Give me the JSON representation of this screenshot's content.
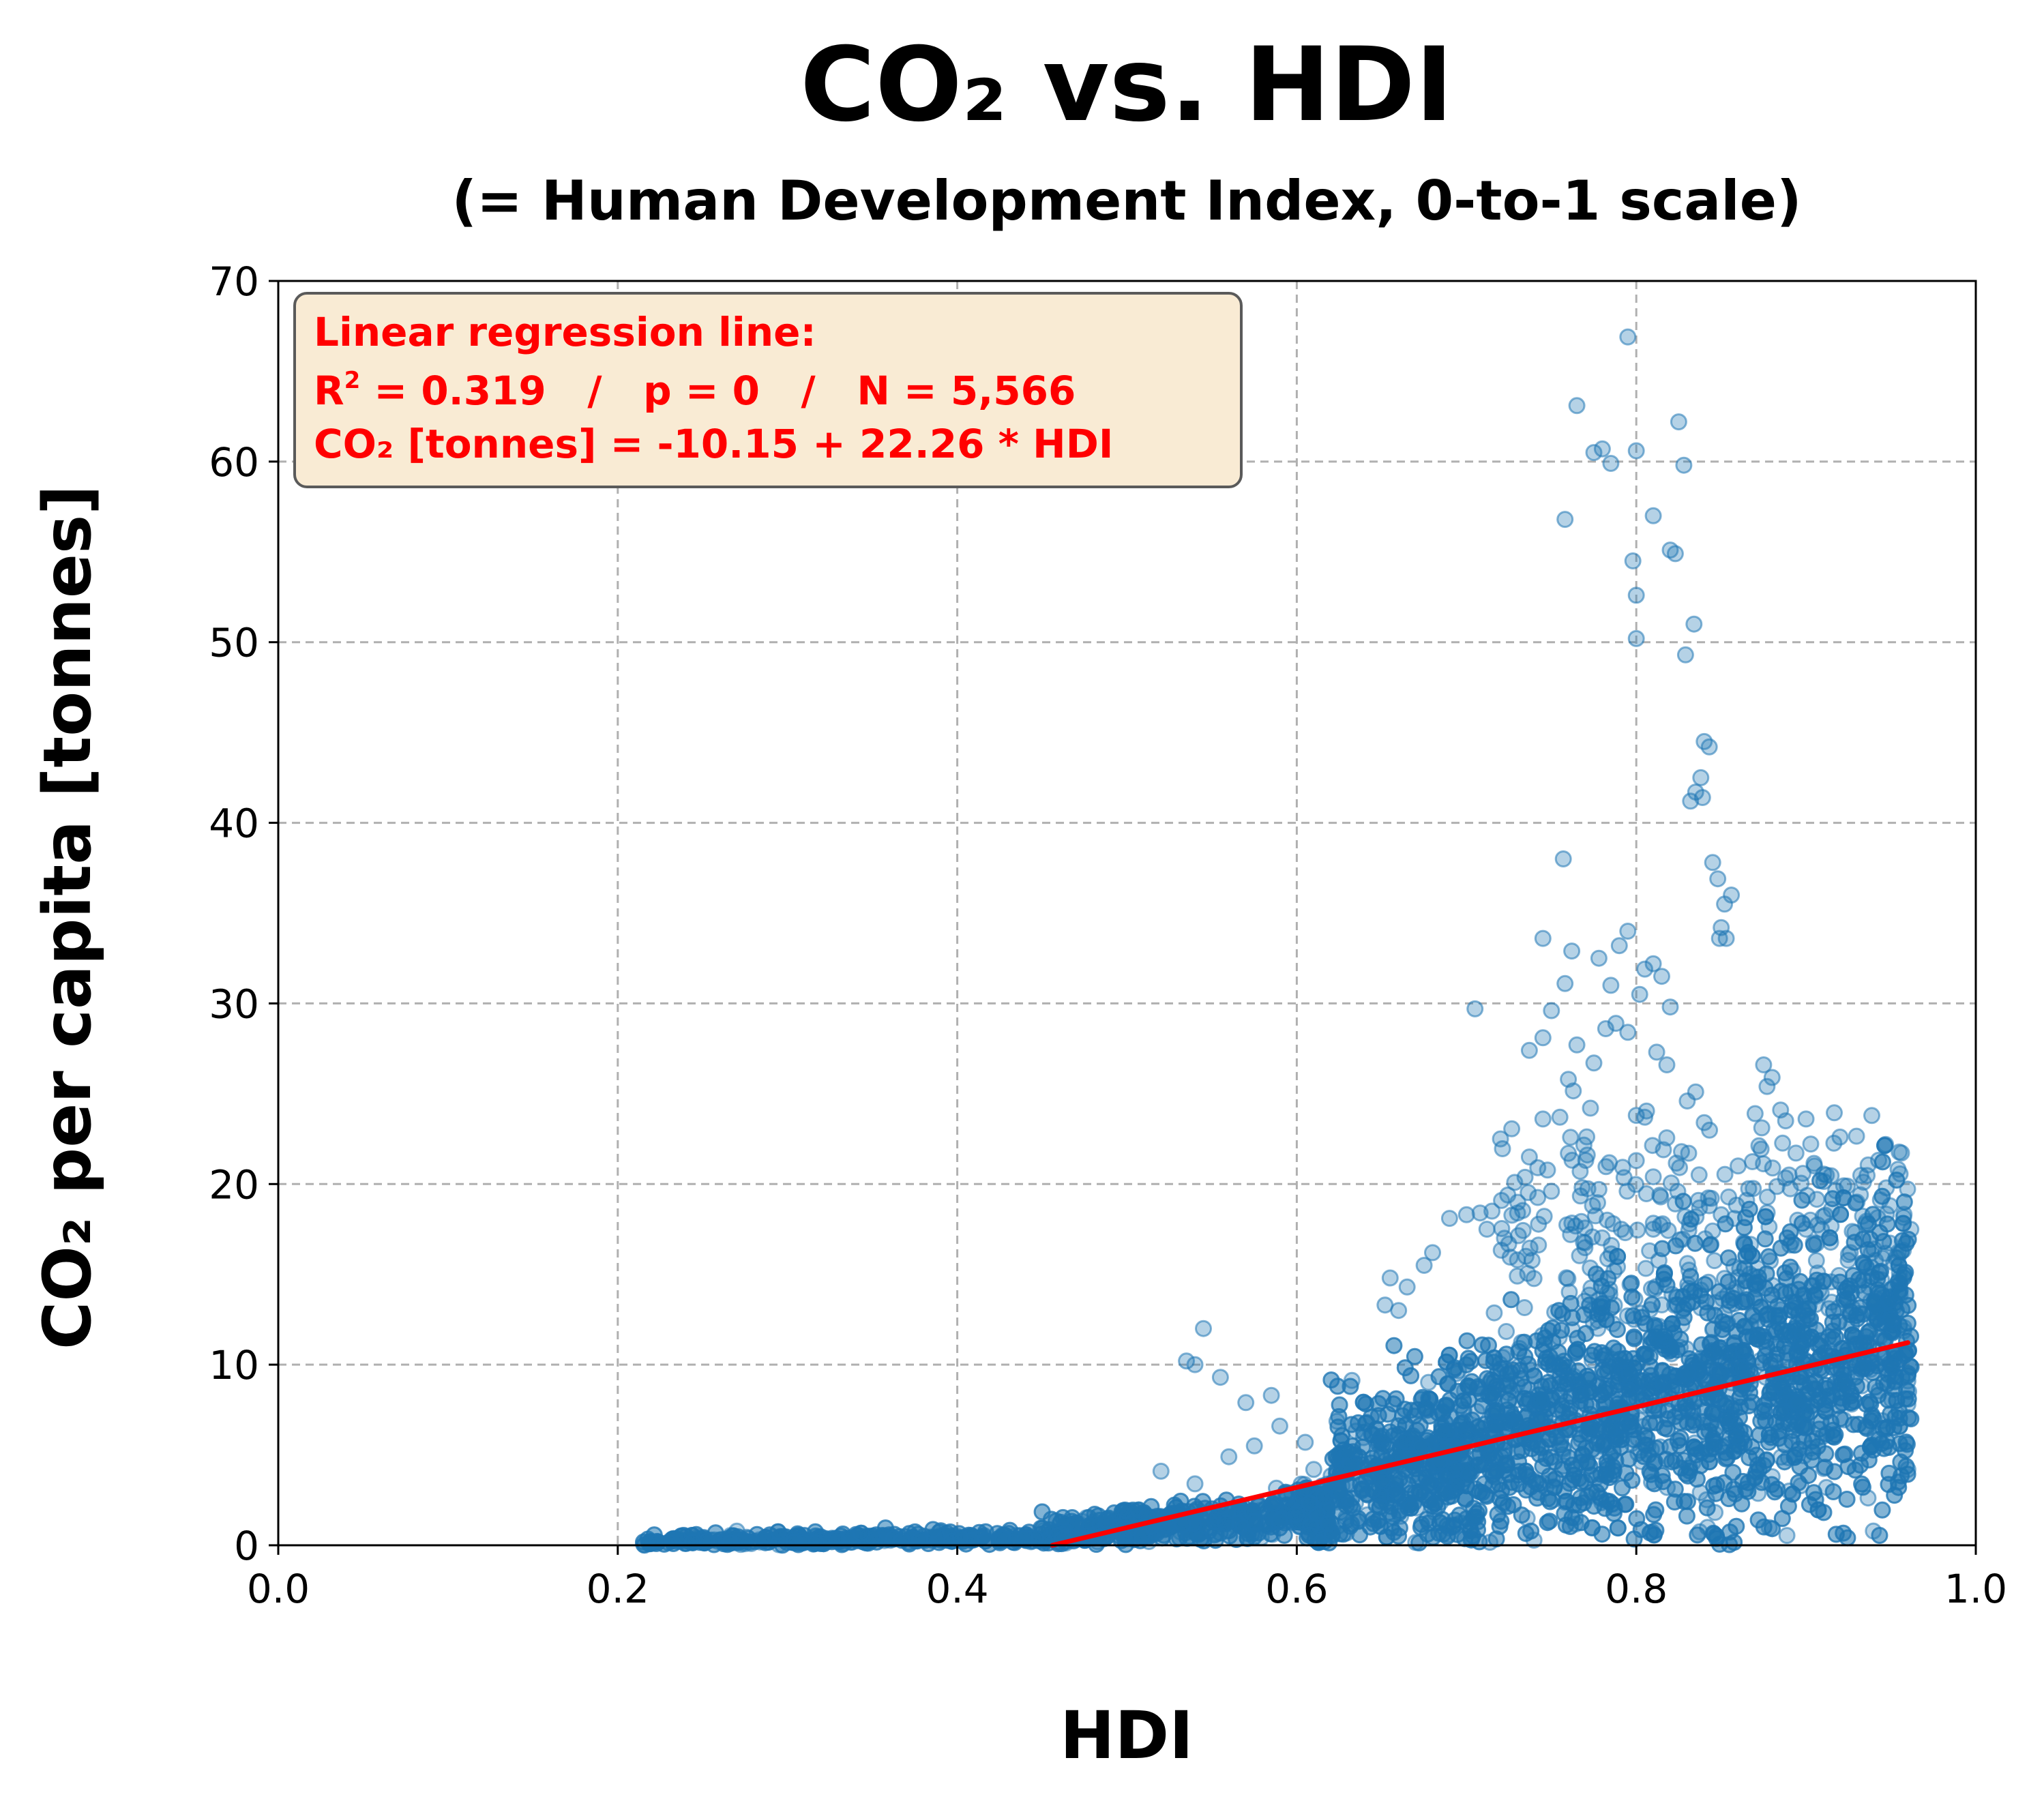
{
  "chart_data": {
    "type": "scatter",
    "title": "CO₂ vs. HDI",
    "subtitle": "(= Human Development Index, 0-to-1 scale)",
    "xlabel": "HDI",
    "ylabel": "CO₂ per capita [tonnes]",
    "xlim": [
      0.0,
      1.0
    ],
    "ylim": [
      0,
      70
    ],
    "x_ticks": [
      "0.0",
      "0.2",
      "0.4",
      "0.6",
      "0.8",
      "1.0"
    ],
    "y_ticks": [
      "0",
      "10",
      "20",
      "30",
      "40",
      "50",
      "60",
      "70"
    ],
    "grid": true,
    "colors": {
      "points": "#1f77b4",
      "regression": "#ff0000",
      "annotation_text": "#ff0000",
      "annotation_box": "#f9ebd4"
    },
    "annotation": {
      "line1": "Linear regression line:",
      "line2_r": "R",
      "line2_sup": "2",
      "line2_rest": " = 0.319   /   p = 0   /   N = 5,566",
      "line3": "CO₂ [tonnes] = -10.15 + 22.26 * HDI"
    },
    "regression": {
      "intercept": -10.15,
      "slope": 22.26,
      "x_range": [
        0.456,
        0.96
      ]
    },
    "outlier_points": [
      {
        "x": 0.795,
        "y": 66.9
      },
      {
        "x": 0.765,
        "y": 63.1
      },
      {
        "x": 0.825,
        "y": 62.2
      },
      {
        "x": 0.775,
        "y": 60.5
      },
      {
        "x": 0.78,
        "y": 60.7
      },
      {
        "x": 0.8,
        "y": 60.6
      },
      {
        "x": 0.785,
        "y": 59.9
      },
      {
        "x": 0.828,
        "y": 59.8
      },
      {
        "x": 0.81,
        "y": 57.0
      },
      {
        "x": 0.758,
        "y": 56.8
      },
      {
        "x": 0.82,
        "y": 55.1
      },
      {
        "x": 0.823,
        "y": 54.9
      },
      {
        "x": 0.798,
        "y": 54.5
      },
      {
        "x": 0.8,
        "y": 52.6
      },
      {
        "x": 0.8,
        "y": 50.2
      },
      {
        "x": 0.834,
        "y": 51.0
      },
      {
        "x": 0.829,
        "y": 49.3
      },
      {
        "x": 0.84,
        "y": 44.5
      },
      {
        "x": 0.843,
        "y": 44.2
      },
      {
        "x": 0.838,
        "y": 42.5
      },
      {
        "x": 0.835,
        "y": 41.7
      },
      {
        "x": 0.832,
        "y": 41.2
      },
      {
        "x": 0.839,
        "y": 41.4
      },
      {
        "x": 0.757,
        "y": 38.0
      },
      {
        "x": 0.845,
        "y": 37.8
      },
      {
        "x": 0.848,
        "y": 36.9
      },
      {
        "x": 0.856,
        "y": 36.0
      },
      {
        "x": 0.852,
        "y": 35.5
      },
      {
        "x": 0.85,
        "y": 34.2
      },
      {
        "x": 0.849,
        "y": 33.6
      },
      {
        "x": 0.853,
        "y": 33.6
      },
      {
        "x": 0.745,
        "y": 33.6
      },
      {
        "x": 0.762,
        "y": 32.9
      },
      {
        "x": 0.795,
        "y": 34.0
      },
      {
        "x": 0.79,
        "y": 33.2
      },
      {
        "x": 0.81,
        "y": 32.2
      },
      {
        "x": 0.778,
        "y": 32.5
      },
      {
        "x": 0.805,
        "y": 31.9
      },
      {
        "x": 0.815,
        "y": 31.5
      },
      {
        "x": 0.785,
        "y": 31.0
      },
      {
        "x": 0.758,
        "y": 31.1
      },
      {
        "x": 0.802,
        "y": 30.5
      },
      {
        "x": 0.82,
        "y": 29.8
      },
      {
        "x": 0.705,
        "y": 29.7
      },
      {
        "x": 0.75,
        "y": 29.6
      },
      {
        "x": 0.788,
        "y": 28.9
      },
      {
        "x": 0.795,
        "y": 28.4
      },
      {
        "x": 0.782,
        "y": 28.6
      },
      {
        "x": 0.745,
        "y": 28.1
      },
      {
        "x": 0.737,
        "y": 27.4
      },
      {
        "x": 0.765,
        "y": 27.7
      },
      {
        "x": 0.775,
        "y": 26.7
      },
      {
        "x": 0.812,
        "y": 27.3
      },
      {
        "x": 0.818,
        "y": 26.6
      },
      {
        "x": 0.875,
        "y": 26.6
      },
      {
        "x": 0.88,
        "y": 25.9
      },
      {
        "x": 0.877,
        "y": 25.4
      },
      {
        "x": 0.76,
        "y": 25.8
      },
      {
        "x": 0.773,
        "y": 24.2
      },
      {
        "x": 0.745,
        "y": 23.6
      },
      {
        "x": 0.755,
        "y": 23.7
      },
      {
        "x": 0.835,
        "y": 25.1
      },
      {
        "x": 0.83,
        "y": 24.6
      },
      {
        "x": 0.84,
        "y": 23.4
      },
      {
        "x": 0.805,
        "y": 23.7
      },
      {
        "x": 0.885,
        "y": 24.1
      },
      {
        "x": 0.87,
        "y": 23.9
      },
      {
        "x": 0.72,
        "y": 22.5
      },
      {
        "x": 0.737,
        "y": 21.5
      },
      {
        "x": 0.742,
        "y": 20.9
      },
      {
        "x": 0.76,
        "y": 21.7
      },
      {
        "x": 0.8,
        "y": 21.3
      },
      {
        "x": 0.81,
        "y": 20.4
      },
      {
        "x": 0.816,
        "y": 21.9
      },
      {
        "x": 0.888,
        "y": 23.5
      },
      {
        "x": 0.9,
        "y": 23.6
      },
      {
        "x": 0.92,
        "y": 22.6
      },
      {
        "x": 0.905,
        "y": 21.0
      },
      {
        "x": 0.89,
        "y": 20.5
      },
      {
        "x": 0.86,
        "y": 21.0
      },
      {
        "x": 0.865,
        "y": 19.1
      },
      {
        "x": 0.85,
        "y": 18.3
      },
      {
        "x": 0.845,
        "y": 17.4
      },
      {
        "x": 0.823,
        "y": 18.9
      },
      {
        "x": 0.778,
        "y": 19.7
      },
      {
        "x": 0.75,
        "y": 19.6
      },
      {
        "x": 0.715,
        "y": 18.5
      },
      {
        "x": 0.7,
        "y": 18.3
      },
      {
        "x": 0.708,
        "y": 18.4
      },
      {
        "x": 0.69,
        "y": 18.1
      },
      {
        "x": 0.712,
        "y": 17.5
      },
      {
        "x": 0.68,
        "y": 16.2
      },
      {
        "x": 0.73,
        "y": 15.8
      },
      {
        "x": 0.675,
        "y": 15.5
      },
      {
        "x": 0.655,
        "y": 14.8
      },
      {
        "x": 0.665,
        "y": 14.3
      },
      {
        "x": 0.652,
        "y": 13.3
      },
      {
        "x": 0.66,
        "y": 13.0
      },
      {
        "x": 0.545,
        "y": 12.0
      },
      {
        "x": 0.535,
        "y": 10.2
      },
      {
        "x": 0.54,
        "y": 10.0
      },
      {
        "x": 0.555,
        "y": 9.3
      },
      {
        "x": 0.585,
        "y": 8.3
      },
      {
        "x": 0.57,
        "y": 7.9
      },
      {
        "x": 0.59,
        "y": 6.6
      },
      {
        "x": 0.605,
        "y": 5.7
      },
      {
        "x": 0.575,
        "y": 5.5
      },
      {
        "x": 0.56,
        "y": 4.9
      },
      {
        "x": 0.54,
        "y": 3.4
      },
      {
        "x": 0.52,
        "y": 4.1
      },
      {
        "x": 0.61,
        "y": 4.2
      },
      {
        "x": 0.93,
        "y": 19.0
      },
      {
        "x": 0.935,
        "y": 17.8
      },
      {
        "x": 0.94,
        "y": 16.4
      },
      {
        "x": 0.945,
        "y": 15.9
      },
      {
        "x": 0.955,
        "y": 15.1
      },
      {
        "x": 0.915,
        "y": 18.6
      },
      {
        "x": 0.91,
        "y": 18.2
      },
      {
        "x": 0.895,
        "y": 18.0
      },
      {
        "x": 0.9,
        "y": 17.5
      },
      {
        "x": 0.925,
        "y": 16.1
      },
      {
        "x": 0.94,
        "y": 13.5
      },
      {
        "x": 0.95,
        "y": 12.5
      },
      {
        "x": 0.96,
        "y": 9.1
      },
      {
        "x": 0.96,
        "y": 7.8
      },
      {
        "x": 0.96,
        "y": 4.2
      },
      {
        "x": 0.89,
        "y": 3.0
      },
      {
        "x": 0.88,
        "y": 3.8
      },
      {
        "x": 0.912,
        "y": 3.2
      },
      {
        "x": 0.897,
        "y": 3.3
      },
      {
        "x": 0.8,
        "y": 23.8
      },
      {
        "x": 0.81,
        "y": 17.5
      }
    ]
  }
}
